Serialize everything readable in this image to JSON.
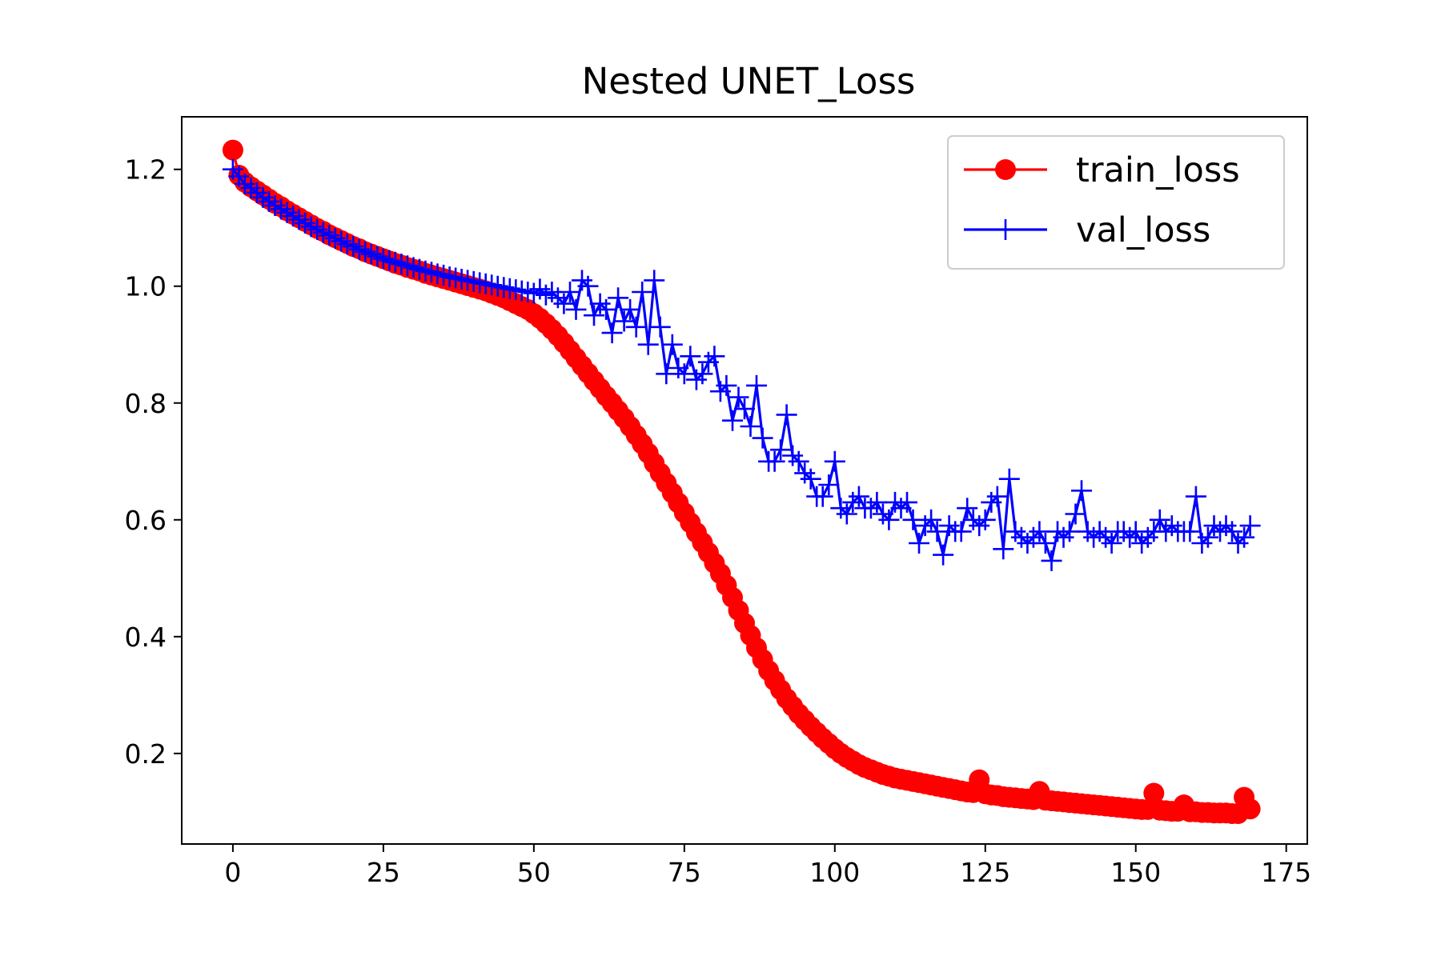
{
  "chart_data": {
    "type": "line",
    "title": "Nested UNET_Loss",
    "xlabel": "",
    "ylabel": "",
    "xlim": [
      -8.5,
      178.5
    ],
    "ylim": [
      0.045,
      1.29
    ],
    "xticks": [
      0,
      25,
      50,
      75,
      100,
      125,
      150,
      175
    ],
    "yticks": [
      0.2,
      0.4,
      0.6,
      0.8,
      1.0,
      1.2
    ],
    "xtick_labels": [
      "0",
      "25",
      "50",
      "75",
      "100",
      "125",
      "150",
      "175"
    ],
    "ytick_labels": [
      "0.2",
      "0.4",
      "0.6",
      "0.8",
      "1.0",
      "1.2"
    ],
    "grid": false,
    "legend_position": "upper right",
    "series": [
      {
        "name": "train_loss",
        "color": "#ff0000",
        "marker": "circle",
        "x": [
          0,
          1,
          2,
          3,
          4,
          5,
          6,
          7,
          8,
          9,
          10,
          11,
          12,
          13,
          14,
          15,
          16,
          17,
          18,
          19,
          20,
          21,
          22,
          23,
          24,
          25,
          26,
          27,
          28,
          29,
          30,
          31,
          32,
          33,
          34,
          35,
          36,
          37,
          38,
          39,
          40,
          41,
          42,
          43,
          44,
          45,
          46,
          47,
          48,
          49,
          50,
          51,
          52,
          53,
          54,
          55,
          56,
          57,
          58,
          59,
          60,
          61,
          62,
          63,
          64,
          65,
          66,
          67,
          68,
          69,
          70,
          71,
          72,
          73,
          74,
          75,
          76,
          77,
          78,
          79,
          80,
          81,
          82,
          83,
          84,
          85,
          86,
          87,
          88,
          89,
          90,
          91,
          92,
          93,
          94,
          95,
          96,
          97,
          98,
          99,
          100,
          101,
          102,
          103,
          104,
          105,
          106,
          107,
          108,
          109,
          110,
          111,
          112,
          113,
          114,
          115,
          116,
          117,
          118,
          119,
          120,
          121,
          122,
          123,
          124,
          125,
          126,
          127,
          128,
          129,
          130,
          131,
          132,
          133,
          134,
          135,
          136,
          137,
          138,
          139,
          140,
          141,
          142,
          143,
          144,
          145,
          146,
          147,
          148,
          149,
          150,
          151,
          152,
          153,
          154,
          155,
          156,
          157,
          158,
          159,
          160,
          161,
          162,
          163,
          164,
          165,
          166,
          167,
          168,
          169
        ],
        "values": [
          1.233,
          1.19,
          1.178,
          1.17,
          1.163,
          1.156,
          1.149,
          1.142,
          1.136,
          1.129,
          1.123,
          1.117,
          1.111,
          1.105,
          1.099,
          1.094,
          1.088,
          1.083,
          1.078,
          1.073,
          1.068,
          1.064,
          1.059,
          1.055,
          1.051,
          1.047,
          1.043,
          1.039,
          1.036,
          1.032,
          1.029,
          1.026,
          1.022,
          1.019,
          1.016,
          1.013,
          1.01,
          1.007,
          1.004,
          1.001,
          0.998,
          0.995,
          0.992,
          0.988,
          0.984,
          0.98,
          0.975,
          0.97,
          0.965,
          0.96,
          0.953,
          0.945,
          0.936,
          0.926,
          0.915,
          0.903,
          0.89,
          0.877,
          0.864,
          0.851,
          0.838,
          0.825,
          0.812,
          0.8,
          0.787,
          0.774,
          0.76,
          0.745,
          0.73,
          0.714,
          0.697,
          0.68,
          0.663,
          0.646,
          0.629,
          0.612,
          0.595,
          0.578,
          0.561,
          0.544,
          0.526,
          0.508,
          0.488,
          0.467,
          0.445,
          0.423,
          0.402,
          0.381,
          0.361,
          0.342,
          0.325,
          0.309,
          0.294,
          0.281,
          0.268,
          0.257,
          0.246,
          0.236,
          0.226,
          0.217,
          0.208,
          0.2,
          0.193,
          0.187,
          0.181,
          0.176,
          0.172,
          0.168,
          0.164,
          0.161,
          0.158,
          0.156,
          0.154,
          0.152,
          0.15,
          0.148,
          0.146,
          0.144,
          0.142,
          0.14,
          0.138,
          0.136,
          0.134,
          0.133,
          0.155,
          0.131,
          0.129,
          0.128,
          0.126,
          0.125,
          0.124,
          0.123,
          0.122,
          0.121,
          0.135,
          0.12,
          0.119,
          0.118,
          0.117,
          0.116,
          0.115,
          0.114,
          0.113,
          0.112,
          0.111,
          0.11,
          0.109,
          0.108,
          0.107,
          0.106,
          0.105,
          0.104,
          0.104,
          0.132,
          0.103,
          0.102,
          0.101,
          0.101,
          0.112,
          0.1,
          0.1,
          0.099,
          0.099,
          0.098,
          0.098,
          0.098,
          0.097,
          0.097,
          0.125,
          0.105
        ]
      },
      {
        "name": "val_loss",
        "color": "#0000ff",
        "marker": "plus",
        "x": [
          0,
          1,
          2,
          3,
          4,
          5,
          6,
          7,
          8,
          9,
          10,
          11,
          12,
          13,
          14,
          15,
          16,
          17,
          18,
          19,
          20,
          21,
          22,
          23,
          24,
          25,
          26,
          27,
          28,
          29,
          30,
          31,
          32,
          33,
          34,
          35,
          36,
          37,
          38,
          39,
          40,
          41,
          42,
          43,
          44,
          45,
          46,
          47,
          48,
          49,
          50,
          51,
          52,
          53,
          54,
          55,
          56,
          57,
          58,
          59,
          60,
          61,
          62,
          63,
          64,
          65,
          66,
          67,
          68,
          69,
          70,
          71,
          72,
          73,
          74,
          75,
          76,
          77,
          78,
          79,
          80,
          81,
          82,
          83,
          84,
          85,
          86,
          87,
          88,
          89,
          90,
          91,
          92,
          93,
          94,
          95,
          96,
          97,
          98,
          99,
          100,
          101,
          102,
          103,
          104,
          105,
          106,
          107,
          108,
          109,
          110,
          111,
          112,
          113,
          114,
          115,
          116,
          117,
          118,
          119,
          120,
          121,
          122,
          123,
          124,
          125,
          126,
          127,
          128,
          129,
          130,
          131,
          132,
          133,
          134,
          135,
          136,
          137,
          138,
          139,
          140,
          141,
          142,
          143,
          144,
          145,
          146,
          147,
          148,
          149,
          150,
          151,
          152,
          153,
          154,
          155,
          156,
          157,
          158,
          159,
          160,
          161,
          162,
          163,
          164,
          165,
          166,
          167,
          168,
          169
        ],
        "values": [
          1.2,
          1.188,
          1.175,
          1.168,
          1.16,
          1.152,
          1.145,
          1.138,
          1.132,
          1.126,
          1.12,
          1.114,
          1.108,
          1.102,
          1.097,
          1.092,
          1.087,
          1.082,
          1.077,
          1.072,
          1.068,
          1.063,
          1.059,
          1.055,
          1.051,
          1.047,
          1.044,
          1.041,
          1.038,
          1.035,
          1.032,
          1.029,
          1.026,
          1.024,
          1.021,
          1.019,
          1.016,
          1.014,
          1.012,
          1.01,
          1.008,
          1.006,
          1.004,
          1.002,
          1.0,
          0.998,
          0.996,
          0.994,
          0.992,
          0.99,
          0.988,
          0.995,
          0.985,
          0.99,
          0.98,
          0.97,
          0.99,
          0.96,
          1.01,
          1.0,
          0.95,
          0.97,
          0.96,
          0.92,
          0.98,
          0.94,
          0.96,
          0.93,
          0.99,
          0.9,
          1.01,
          0.93,
          0.85,
          0.9,
          0.86,
          0.85,
          0.88,
          0.84,
          0.85,
          0.87,
          0.88,
          0.82,
          0.83,
          0.77,
          0.81,
          0.79,
          0.76,
          0.83,
          0.74,
          0.7,
          0.7,
          0.72,
          0.78,
          0.71,
          0.7,
          0.68,
          0.67,
          0.64,
          0.64,
          0.66,
          0.7,
          0.62,
          0.61,
          0.63,
          0.64,
          0.62,
          0.62,
          0.63,
          0.61,
          0.6,
          0.63,
          0.62,
          0.63,
          0.6,
          0.56,
          0.59,
          0.6,
          0.58,
          0.54,
          0.59,
          0.58,
          0.58,
          0.62,
          0.6,
          0.59,
          0.6,
          0.63,
          0.64,
          0.55,
          0.67,
          0.58,
          0.57,
          0.56,
          0.57,
          0.58,
          0.56,
          0.53,
          0.58,
          0.57,
          0.58,
          0.61,
          0.65,
          0.58,
          0.57,
          0.58,
          0.57,
          0.56,
          0.58,
          0.58,
          0.57,
          0.58,
          0.56,
          0.57,
          0.58,
          0.6,
          0.58,
          0.59,
          0.58,
          0.58,
          0.58,
          0.64,
          0.56,
          0.57,
          0.59,
          0.58,
          0.59,
          0.58,
          0.56,
          0.57,
          0.59
        ]
      }
    ]
  }
}
